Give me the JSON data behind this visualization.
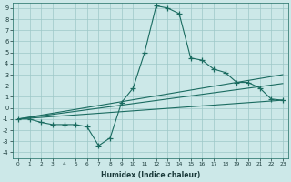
{
  "xlabel": "Humidex (Indice chaleur)",
  "xlim": [
    -0.5,
    23.5
  ],
  "ylim": [
    -4.5,
    9.5
  ],
  "xticks": [
    0,
    1,
    2,
    3,
    4,
    5,
    6,
    7,
    8,
    9,
    10,
    11,
    12,
    13,
    14,
    15,
    16,
    17,
    18,
    19,
    20,
    21,
    22,
    23
  ],
  "yticks": [
    -4,
    -3,
    -2,
    -1,
    0,
    1,
    2,
    3,
    4,
    5,
    6,
    7,
    8,
    9
  ],
  "bg_color": "#cce8e8",
  "line_color": "#1a6b60",
  "grid_color": "#9ec8c8",
  "lines": [
    {
      "x": [
        0,
        1,
        2,
        3,
        4,
        5,
        6,
        7,
        8,
        9,
        10,
        11,
        12,
        13,
        14,
        15,
        16,
        17,
        18,
        19,
        20,
        21,
        22,
        23
      ],
      "y": [
        -1,
        -1,
        -1.3,
        -1.5,
        -1.5,
        -1.5,
        -1.7,
        -3.4,
        -2.7,
        0.5,
        1.8,
        5.0,
        9.2,
        9.0,
        8.5,
        4.5,
        4.3,
        3.5,
        3.2,
        2.3,
        2.3,
        1.8,
        0.8,
        0.7
      ]
    },
    {
      "x": [
        0,
        23
      ],
      "y": [
        -1,
        3.0
      ]
    },
    {
      "x": [
        0,
        23
      ],
      "y": [
        -1,
        2.2
      ]
    },
    {
      "x": [
        0,
        23
      ],
      "y": [
        -1,
        0.7
      ]
    }
  ]
}
